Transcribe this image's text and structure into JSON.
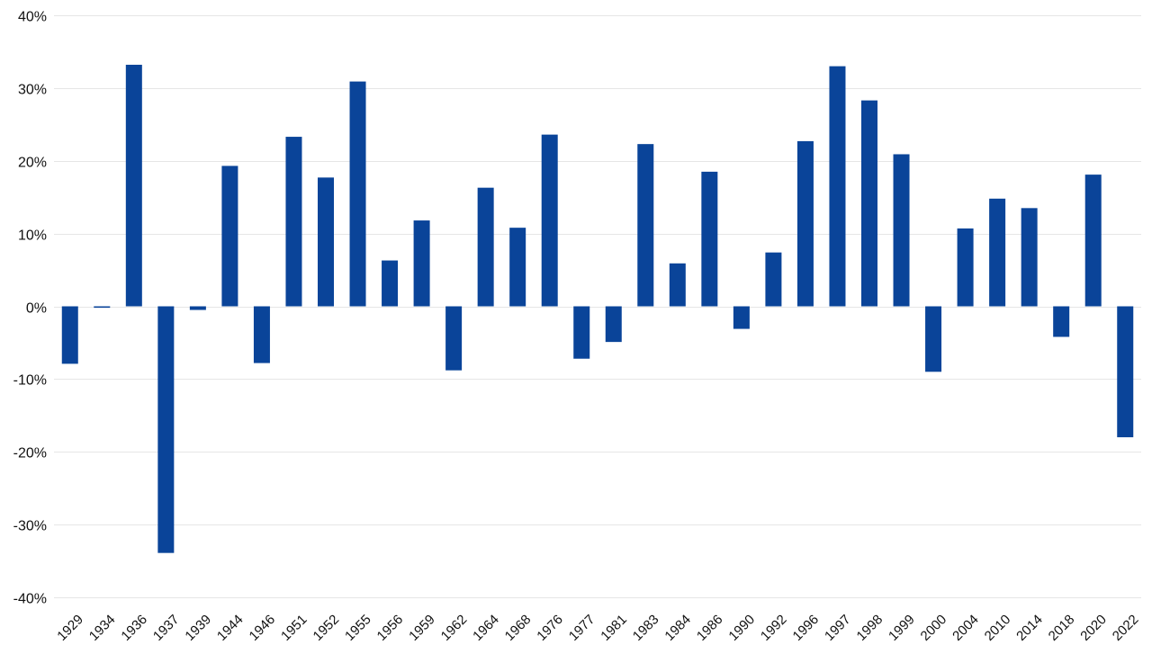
{
  "chart_data": {
    "type": "bar",
    "title": "",
    "xlabel": "",
    "ylabel": "",
    "ylim": [
      -40,
      40
    ],
    "y_ticks": [
      40,
      30,
      20,
      10,
      0,
      -10,
      -20,
      -30,
      -40
    ],
    "y_tick_labels": [
      "40%",
      "30%",
      "20%",
      "10%",
      "0%",
      "-10%",
      "-20%",
      "-30%",
      "-40%"
    ],
    "grid": true,
    "legend": "none",
    "bar_color": "#0a4499",
    "categories": [
      "1929",
      "1934",
      "1936",
      "1937",
      "1939",
      "1944",
      "1946",
      "1951",
      "1952",
      "1955",
      "1956",
      "1959",
      "1962",
      "1964",
      "1968",
      "1976",
      "1977",
      "1981",
      "1983",
      "1984",
      "1986",
      "1990",
      "1992",
      "1996",
      "1997",
      "1998",
      "1999",
      "2000",
      "2004",
      "2010",
      "2014",
      "2018",
      "2020",
      "2022"
    ],
    "values": [
      -7.9,
      -0.2,
      33.2,
      -33.9,
      -0.5,
      19.3,
      -7.8,
      23.3,
      17.7,
      30.9,
      6.3,
      11.8,
      -8.8,
      16.3,
      10.8,
      23.6,
      -7.2,
      -4.9,
      22.3,
      5.9,
      18.5,
      -3.1,
      7.4,
      22.7,
      33.0,
      28.3,
      20.9,
      -9.0,
      10.7,
      14.8,
      13.5,
      -4.2,
      18.1,
      -18.0
    ]
  }
}
